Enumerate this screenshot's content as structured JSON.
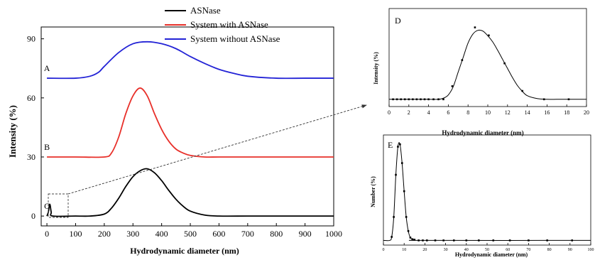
{
  "chart_data": [
    {
      "type": "line",
      "xlabel": "Hydrodynamic diameter (nm)",
      "ylabel": "Intensity (%)",
      "xlim": [
        -20,
        1000
      ],
      "ylim": [
        -5,
        96
      ],
      "xticks": [
        0,
        100,
        200,
        300,
        400,
        500,
        600,
        700,
        800,
        900,
        1000
      ],
      "yticks": [
        0,
        30,
        60,
        90
      ],
      "legend": {
        "position": "top-center",
        "entries": [
          {
            "label": "ASNase",
            "color": "#000000"
          },
          {
            "label": "System with ASNase",
            "color": "#e8302a"
          },
          {
            "label": "System without ASNase",
            "color": "#2323d6"
          }
        ]
      },
      "annotations": [
        "A",
        "B",
        "C"
      ],
      "series": [
        {
          "name": "System without ASNase",
          "label": "A",
          "color": "#2323d6",
          "x": [
            0,
            100,
            150,
            180,
            200,
            250,
            300,
            350,
            400,
            450,
            500,
            550,
            600,
            650,
            700,
            800,
            900,
            1000
          ],
          "y": [
            70,
            70,
            71,
            73,
            76,
            83,
            87.5,
            88.5,
            87.5,
            85,
            81,
            77.5,
            74.5,
            72.5,
            71,
            70,
            70,
            70
          ]
        },
        {
          "name": "System with ASNase",
          "label": "B",
          "color": "#e8302a",
          "x": [
            0,
            100,
            200,
            225,
            250,
            275,
            300,
            325,
            350,
            375,
            400,
            425,
            450,
            475,
            500,
            550,
            600,
            700,
            800,
            900,
            1000
          ],
          "y": [
            30,
            30,
            30,
            32,
            40,
            52,
            61,
            65,
            61,
            52,
            44,
            38,
            34,
            32,
            30.8,
            30,
            30,
            30,
            30,
            30,
            30
          ]
        },
        {
          "name": "ASNase",
          "label": "C",
          "color": "#000000",
          "x": [
            0,
            5,
            10,
            15,
            20,
            100,
            150,
            200,
            225,
            250,
            275,
            300,
            325,
            350,
            375,
            400,
            425,
            450,
            475,
            500,
            550,
            600,
            700,
            800,
            900,
            1000
          ],
          "y": [
            0,
            2,
            6,
            2,
            0,
            0,
            0,
            1,
            4,
            9,
            15,
            20,
            23,
            24,
            22,
            18,
            13,
            8.5,
            5,
            2.5,
            0.5,
            0,
            0,
            0,
            0,
            0
          ]
        }
      ]
    },
    {
      "type": "line",
      "annotations": [
        "D"
      ],
      "xlabel": "Hydrodynamic diameter (nm)",
      "ylabel": "Intensity (%)",
      "xlim": [
        0,
        20
      ],
      "ylim": [
        -2,
        25
      ],
      "xticks": [
        0,
        2,
        4,
        6,
        8,
        10,
        12,
        14,
        16,
        18,
        20
      ],
      "series": [
        {
          "x": [
            0,
            1,
            2,
            3,
            4,
            5,
            5.5,
            6,
            6.5,
            7,
            7.5,
            8,
            8.5,
            9,
            9.5,
            10,
            10.5,
            11,
            11.5,
            12,
            12.5,
            13,
            13.5,
            14,
            15,
            16,
            17,
            18,
            20
          ],
          "y": [
            0,
            0,
            0,
            0,
            0,
            0,
            0.3,
            1.2,
            3.5,
            7.5,
            11.5,
            15.5,
            18,
            19,
            18.8,
            17.5,
            15.8,
            13.5,
            11,
            8.5,
            6,
            3.8,
            2.2,
            1,
            0.2,
            0,
            0,
            0,
            0
          ]
        },
        {
          "x": [
            0.4,
            0.8,
            1.2,
            1.6,
            2,
            2.4,
            2.8,
            3.2,
            3.6,
            4,
            4.5,
            5,
            5.5,
            6.4,
            7.4,
            8.7,
            10.1,
            11.7,
            13.5,
            15.7,
            18.2
          ],
          "y": [
            0,
            0,
            0,
            0,
            0,
            0,
            0,
            0,
            0,
            0,
            0,
            0,
            0,
            3.6,
            10.8,
            19.8,
            17.6,
            9.9,
            2.3,
            0,
            0
          ]
        }
      ]
    },
    {
      "type": "line",
      "annotations": [
        "E"
      ],
      "xlabel": "Hydrodynamic diameter (nm)",
      "ylabel": "Number (%)",
      "xlim": [
        0,
        100
      ],
      "ylim": [
        -2,
        45
      ],
      "xticks": [
        0,
        10,
        20,
        30,
        40,
        50,
        60,
        70,
        80,
        90,
        100
      ],
      "series": [
        {
          "x": [
            0,
            3,
            4,
            5,
            6,
            7,
            8,
            9,
            10,
            11,
            12,
            13,
            15,
            20,
            100
          ],
          "y": [
            0,
            0,
            1.5,
            10,
            28,
            40,
            41,
            33,
            21,
            10,
            4,
            1.2,
            0.2,
            0,
            0
          ]
        },
        {
          "x": [
            4,
            5,
            6,
            7,
            8,
            9,
            10,
            11,
            12,
            13,
            14,
            15,
            17,
            19,
            21,
            25,
            29,
            34,
            40,
            46,
            53,
            61,
            70,
            79,
            91
          ],
          "y": [
            1.5,
            10,
            28,
            40,
            41,
            33,
            21,
            10,
            4,
            1.2,
            0.5,
            0.3,
            0,
            0,
            0,
            0,
            0,
            0,
            0,
            0,
            0,
            0,
            0,
            0,
            0
          ]
        }
      ]
    }
  ]
}
